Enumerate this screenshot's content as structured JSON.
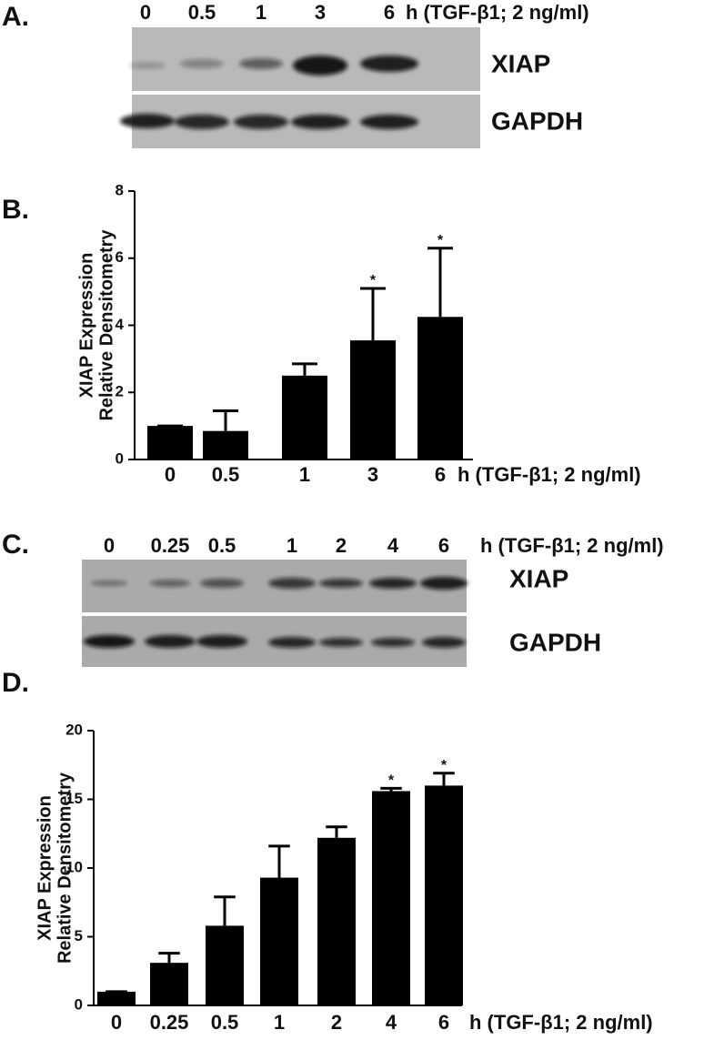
{
  "blots": [
    {
      "panel_label": "A.",
      "lanes": [
        "0",
        "0.5",
        "1",
        "3",
        "6"
      ],
      "unit": "h (TGF-β1; 2 ng/ml)",
      "rows": [
        "XIAP",
        "GAPDH"
      ]
    },
    {
      "panel_label": "C.",
      "lanes": [
        "0",
        "0.25",
        "0.5",
        "1",
        "2",
        "4",
        "6"
      ],
      "unit": "h (TGF-β1; 2 ng/ml)",
      "rows": [
        "XIAP",
        "GAPDH"
      ]
    }
  ],
  "chart_data": [
    {
      "type": "bar",
      "panel_label": "B.",
      "categories": [
        "0",
        "0.5",
        "1",
        "3",
        "6"
      ],
      "values": [
        1.0,
        0.85,
        2.5,
        3.55,
        4.25
      ],
      "errors": [
        0,
        0.6,
        0.35,
        1.55,
        2.05
      ],
      "color": "#000000",
      "xlabel": "h (TGF-β1; 2 ng/ml)",
      "ylabel": [
        "XIAP Expression",
        "Relative Densitometry"
      ],
      "ylim": [
        0,
        8
      ],
      "yticks": [
        0,
        2,
        4,
        6,
        8
      ],
      "annotations": [
        {
          "category": "3",
          "text": "*"
        },
        {
          "category": "6",
          "text": "*"
        }
      ]
    },
    {
      "type": "bar",
      "panel_label": "D.",
      "categories": [
        "0",
        "0.25",
        "0.5",
        "1",
        "2",
        "4",
        "6"
      ],
      "values": [
        1.0,
        3.1,
        5.8,
        9.3,
        12.2,
        15.6,
        16.0
      ],
      "errors": [
        0,
        0.7,
        2.1,
        2.3,
        0.8,
        0.2,
        0.9
      ],
      "color": "#000000",
      "xlabel": "h (TGF-β1; 2 ng/ml)",
      "ylabel": [
        "XIAP Expression",
        "Relative Densitometry"
      ],
      "ylim": [
        0,
        20
      ],
      "yticks": [
        0,
        5,
        10,
        15,
        20
      ],
      "annotations": [
        {
          "category": "4",
          "text": "*"
        },
        {
          "category": "6",
          "text": "*"
        }
      ]
    }
  ]
}
